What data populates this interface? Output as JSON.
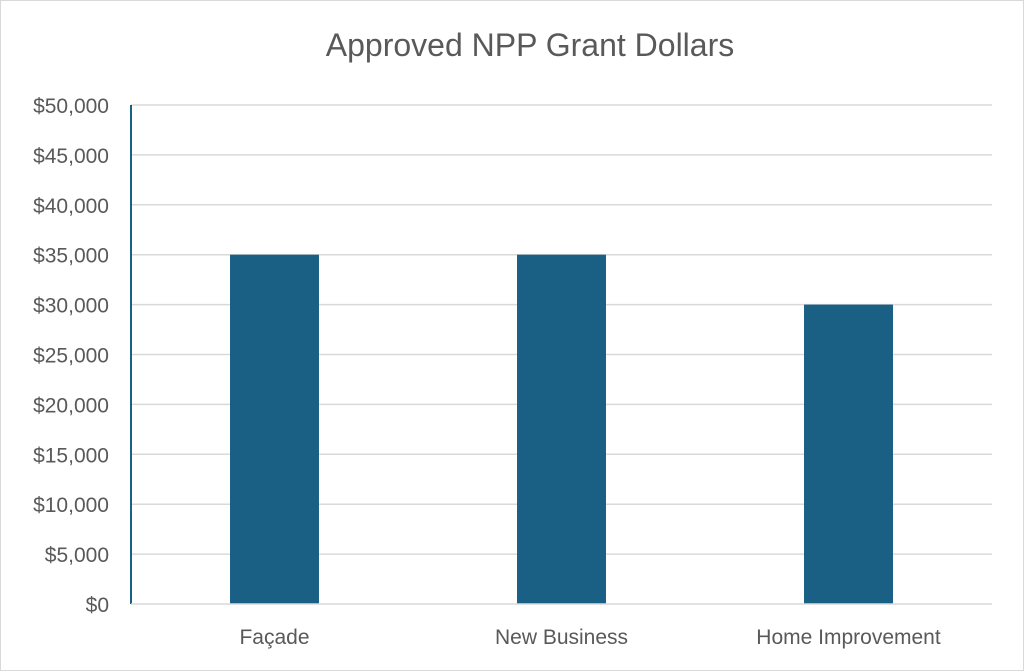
{
  "chart_data": {
    "type": "bar",
    "title": "Approved NPP Grant Dollars",
    "xlabel": "",
    "ylabel": "",
    "categories": [
      "Façade",
      "New Business",
      "Home Improvement"
    ],
    "values": [
      35000,
      35000,
      30000
    ],
    "ylim": [
      0,
      50000
    ],
    "ytick_step": 5000,
    "ytick_labels": [
      "$0",
      "$5,000",
      "$10,000",
      "$15,000",
      "$20,000",
      "$25,000",
      "$30,000",
      "$35,000",
      "$40,000",
      "$45,000",
      "$50,000"
    ],
    "grid": true,
    "legend": "none",
    "bar_color": "#1a6084",
    "grid_color": "#d9d9d9",
    "axis_color": "#1a6084"
  }
}
